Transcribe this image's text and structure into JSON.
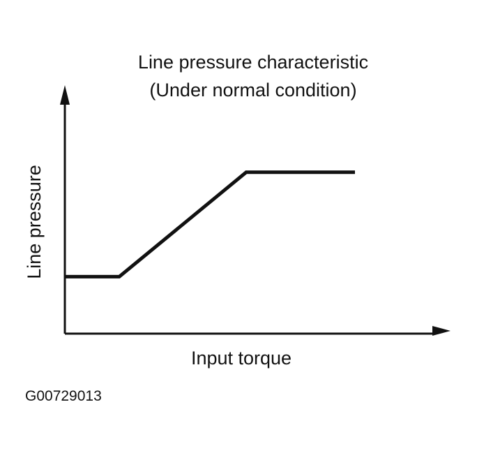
{
  "chart_data": {
    "type": "line",
    "title": "Line pressure characteristic",
    "subtitle": "(Under normal condition)",
    "xlabel": "Input torque",
    "ylabel": "Line pressure",
    "xlim": [
      0,
      100
    ],
    "ylim": [
      0,
      100
    ],
    "grid": false,
    "legend": "none",
    "series": [
      {
        "x": [
          0,
          15,
          50,
          80
        ],
        "y": [
          24,
          24,
          68,
          68
        ]
      }
    ]
  },
  "figure_id": "G00729013",
  "colors": {
    "ink": "#111111",
    "background": "#ffffff"
  }
}
